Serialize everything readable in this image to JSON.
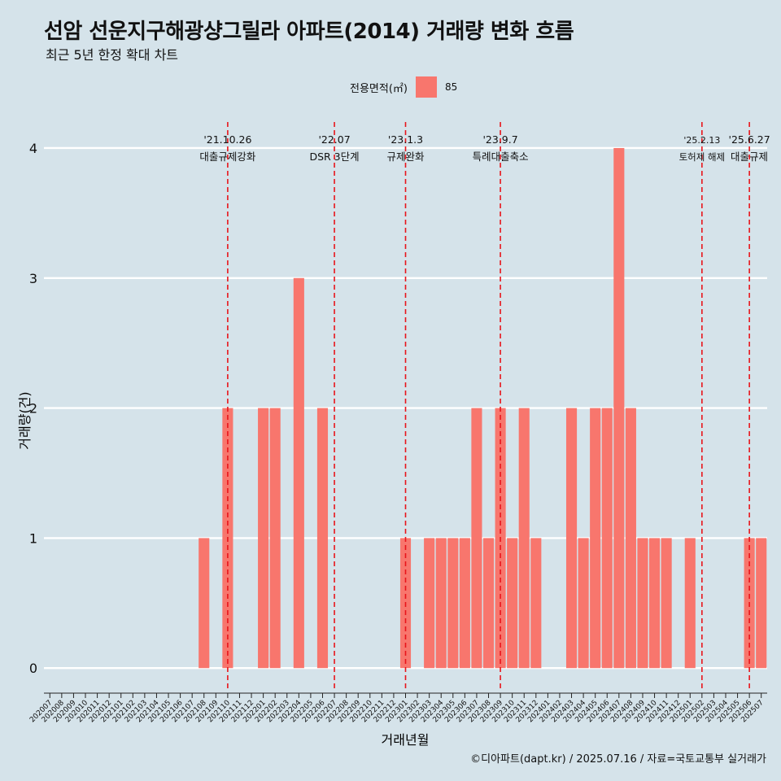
{
  "header": {
    "title": "선암 선운지구해광샹그릴라 아파트(2014) 거래량 변화 흐름",
    "subtitle": "최근 5년 한정 확대 차트"
  },
  "legend": {
    "title": "전용면적(㎡)",
    "entries": [
      {
        "label": "85",
        "color": "#f8766d"
      }
    ]
  },
  "caption": "©디아파트(dapt.kr) / 2025.07.16 / 자료=국토교통부 실거래가",
  "chart_data": {
    "type": "bar",
    "xlabel": "거래년월",
    "ylabel": "거래량(건)",
    "ylim": [
      -0.18,
      4.2
    ],
    "yticks": [
      0,
      1,
      2,
      3,
      4
    ],
    "grid": true,
    "legend_position": "top",
    "bar_color": "#f8766d",
    "categories": [
      "202007",
      "202008",
      "202009",
      "202010",
      "202011",
      "202012",
      "202101",
      "202102",
      "202103",
      "202104",
      "202105",
      "202106",
      "202107",
      "202108",
      "202109",
      "202110",
      "202111",
      "202112",
      "202201",
      "202202",
      "202203",
      "202204",
      "202205",
      "202206",
      "202207",
      "202208",
      "202209",
      "202210",
      "202211",
      "202212",
      "202301",
      "202302",
      "202303",
      "202304",
      "202305",
      "202306",
      "202307",
      "202308",
      "202309",
      "202310",
      "202311",
      "202312",
      "202401",
      "202402",
      "202403",
      "202404",
      "202405",
      "202406",
      "202407",
      "202408",
      "202409",
      "202410",
      "202411",
      "202412",
      "202501",
      "202502",
      "202503",
      "202504",
      "202505",
      "202506",
      "202507"
    ],
    "series": [
      {
        "name": "85",
        "values": [
          0,
          0,
          0,
          0,
          0,
          0,
          0,
          0,
          0,
          0,
          0,
          0,
          0,
          1,
          0,
          2,
          0,
          0,
          2,
          2,
          0,
          3,
          0,
          2,
          0,
          0,
          0,
          0,
          0,
          0,
          1,
          0,
          1,
          1,
          1,
          1,
          2,
          1,
          2,
          1,
          2,
          1,
          0,
          0,
          2,
          1,
          2,
          2,
          4,
          2,
          1,
          1,
          1,
          0,
          1,
          0,
          0,
          0,
          0,
          1,
          1
        ]
      }
    ],
    "annotations": [
      {
        "x": "202110",
        "date": "'21.10.26",
        "label": "대출규제강화"
      },
      {
        "x": "202207",
        "date": "'22.07",
        "label": "DSR 3단계"
      },
      {
        "x": "202301",
        "date": "'23.1.3",
        "label": "규제완화"
      },
      {
        "x": "202309",
        "date": "'23.9.7",
        "label": "특례대출축소"
      },
      {
        "x": "202502",
        "date": "'25.2.13",
        "label": "토허제 해제"
      },
      {
        "x": "202506",
        "date": "'25.6.27",
        "label": "대출규제"
      }
    ]
  }
}
